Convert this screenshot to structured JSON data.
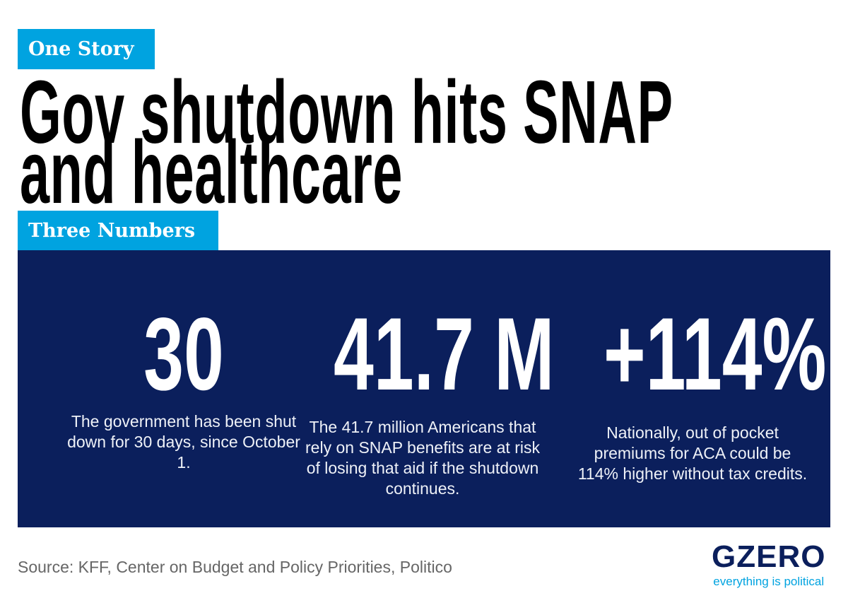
{
  "header": {
    "tag": "One Story",
    "title_line1": "Gov shutdown hits SNAP",
    "title_line2": "and healthcare",
    "section_tag": "Three Numbers"
  },
  "numbers": [
    {
      "value": "30",
      "description": "The government has been shut down for 30 days, since October 1."
    },
    {
      "value": "41.7 M",
      "description": "The 41.7 million Americans that rely on SNAP benefits are at risk of losing that aid if the shutdown continues."
    },
    {
      "value": "+114%",
      "description": "Nationally, out of pocket premiums for ACA could be 114% higher without tax credits."
    }
  ],
  "footer": {
    "source": "Source: KFF,  Center on Budget and Policy Priorities, Politico",
    "logo": "GZERO",
    "tagline": "everything is political"
  },
  "colors": {
    "accent": "#00a3e0",
    "panel": "#0b1f5c"
  }
}
